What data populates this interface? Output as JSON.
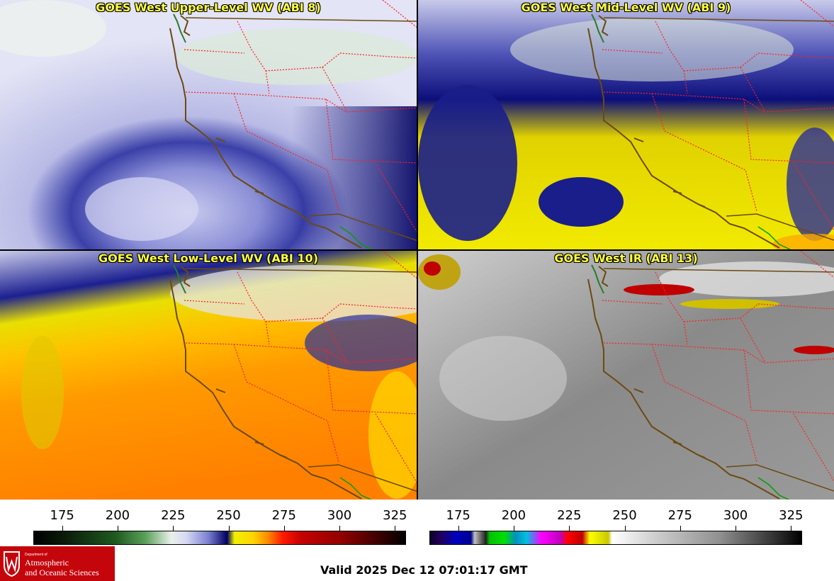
{
  "panels": {
    "upper_level": {
      "title": "GOES West Upper-Level WV (ABI 8)"
    },
    "mid_level": {
      "title": "GOES West Mid-Level WV (ABI 9)"
    },
    "low_level": {
      "title": "GOES West Low-Level WV (ABI 10)"
    },
    "infrared": {
      "title": "GOES West IR (ABI 13)"
    }
  },
  "colorbars": {
    "water_vapor": {
      "ticks": [
        "175",
        "200",
        "225",
        "250",
        "275",
        "300",
        "325"
      ],
      "tick_values": [
        175,
        200,
        225,
        250,
        275,
        300,
        325
      ],
      "range": [
        162,
        330
      ]
    },
    "infrared": {
      "ticks": [
        "175",
        "200",
        "225",
        "250",
        "275",
        "300",
        "325"
      ],
      "tick_values": [
        175,
        200,
        225,
        250,
        275,
        300,
        325
      ],
      "range": [
        162,
        330
      ]
    }
  },
  "logo": {
    "department": "Department of",
    "line1": "Atmospheric",
    "line2": "and Oceanic Sciences"
  },
  "valid_time": "Valid 2025 Dec 12 07:01:17 GMT",
  "colors": {
    "title_text": "#ffff40",
    "state_borders": "#ff2020",
    "coastline": "#6b4a10",
    "logo_red": "#c5050c"
  }
}
